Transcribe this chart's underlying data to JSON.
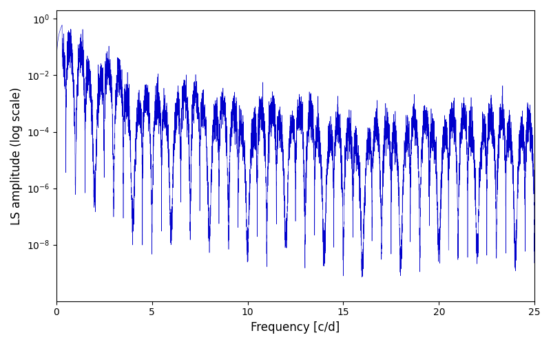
{
  "title": "",
  "xlabel": "Frequency [c/d]",
  "ylabel": "LS amplitude (log scale)",
  "line_color": "#0000cc",
  "xlim": [
    0,
    25
  ],
  "ylim": [
    1e-10,
    2.0
  ],
  "yticks": [
    1e-08,
    1e-06,
    0.0001,
    0.01,
    1.0
  ],
  "figsize": [
    8.0,
    5.0
  ],
  "dpi": 100,
  "seed": 17,
  "n_points": 8000,
  "freq_max": 25.0
}
